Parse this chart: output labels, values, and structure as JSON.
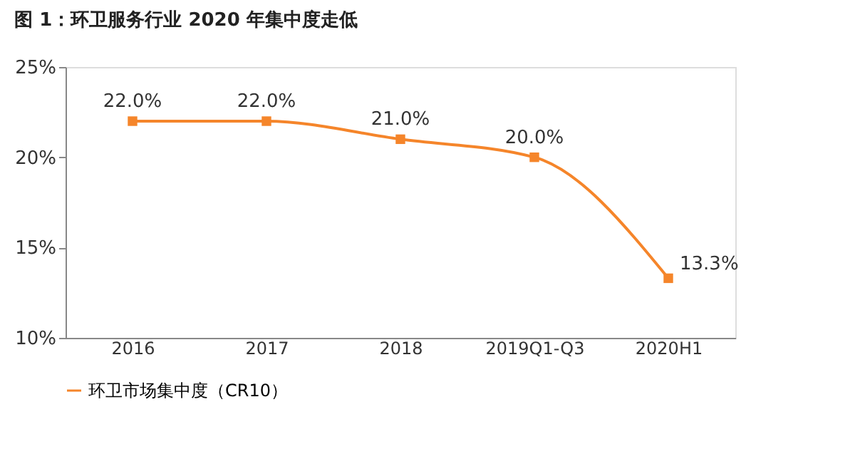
{
  "chart_data": {
    "type": "line",
    "title": "图 1：环卫服务行业 2020 年集中度走低",
    "categories": [
      "2016",
      "2017",
      "2018",
      "2019Q1-Q3",
      "2020H1"
    ],
    "series": [
      {
        "name": "环卫市场集中度（CR10）",
        "color": "#f5852a",
        "values": [
          22.0,
          22.0,
          21.0,
          20.0,
          13.3
        ],
        "value_labels": [
          "22.0%",
          "22.0%",
          "21.0%",
          "20.0%",
          "13.3%"
        ]
      }
    ],
    "ylim": [
      10,
      25
    ],
    "yticks": [
      {
        "value": 10,
        "label": "10%"
      },
      {
        "value": 15,
        "label": "15%"
      },
      {
        "value": 20,
        "label": "20%"
      },
      {
        "value": 25,
        "label": "25%"
      }
    ],
    "grid": false,
    "legend": "bottom",
    "marker": "square",
    "line_style": "solid"
  }
}
